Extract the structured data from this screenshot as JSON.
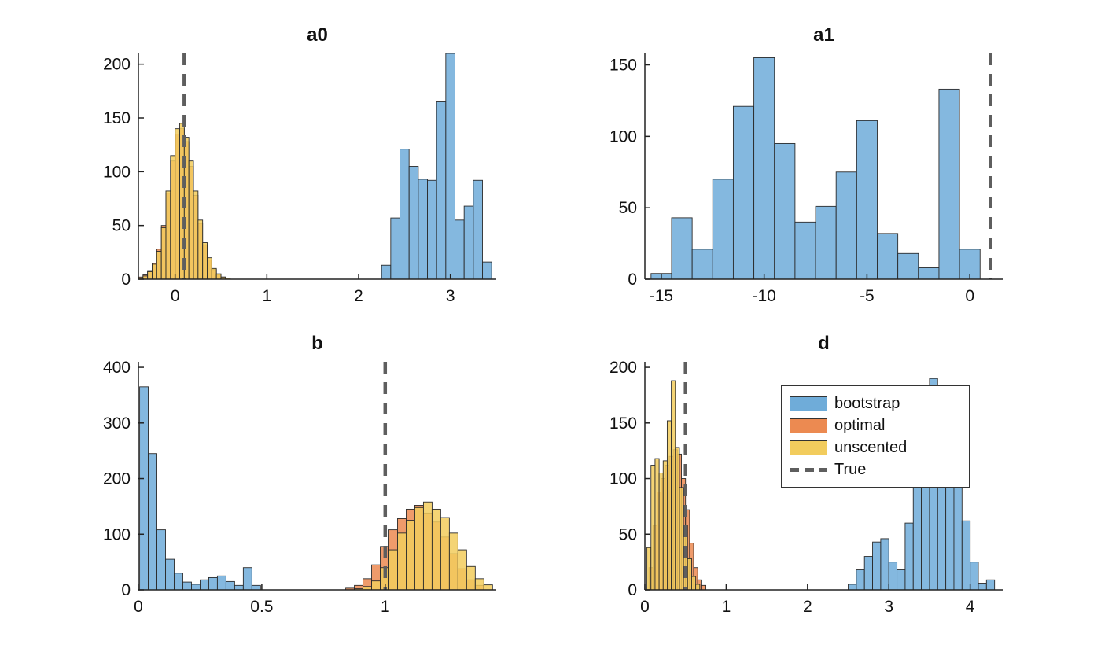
{
  "figure": {
    "background": "#FFFFFF",
    "axis_color": "#222222",
    "tick_label_color": "#111111"
  },
  "styles": {
    "true_line_color": "#5E5E5E",
    "bar_edge_color": "#2B2B2B",
    "bar_fill_opacity": 0.85
  },
  "legend": {
    "entries": [
      {
        "label": "bootstrap",
        "type": "patch",
        "color": "#6FACD9"
      },
      {
        "label": "optimal",
        "type": "patch",
        "color": "#EC8A51"
      },
      {
        "label": "unscented",
        "type": "patch",
        "color": "#F2CC5D"
      },
      {
        "label": "True",
        "type": "dashed-line",
        "color": "#5E5E5E"
      }
    ]
  },
  "chart_data": [
    {
      "type": "histogram",
      "title": "a0",
      "xlim": [
        -0.4,
        3.5
      ],
      "ylim": [
        0,
        210
      ],
      "xticks": [
        0,
        1,
        2,
        3
      ],
      "yticks": [
        0,
        50,
        100,
        150,
        200
      ],
      "true_line_x": 0.1,
      "position": [
        176,
        68,
        455,
        287
      ],
      "series": [
        {
          "name": "bootstrap",
          "color": "#6FACD9",
          "bin_start": 2.25,
          "bin_width": 0.1,
          "values": [
            13,
            57,
            121,
            105,
            93,
            92,
            165,
            212,
            55,
            68,
            92,
            16
          ]
        },
        {
          "name": "optimal",
          "color": "#EC8A51",
          "bin_start": -0.4,
          "bin_width": 0.05,
          "values": [
            2,
            4,
            8,
            15,
            28,
            50,
            80,
            110,
            135,
            140,
            128,
            105,
            78,
            52,
            32,
            18,
            9,
            4,
            2,
            1
          ]
        },
        {
          "name": "unscented",
          "color": "#F2CC5D",
          "bin_start": -0.4,
          "bin_width": 0.05,
          "values": [
            1,
            3,
            7,
            14,
            26,
            48,
            82,
            115,
            140,
            145,
            132,
            110,
            82,
            55,
            34,
            20,
            10,
            5,
            2,
            1
          ]
        }
      ]
    },
    {
      "type": "histogram",
      "title": "a1",
      "xlim": [
        -15.8,
        1.6
      ],
      "ylim": [
        0,
        158
      ],
      "xticks": [
        -15,
        -10,
        -5,
        0
      ],
      "yticks": [
        0,
        50,
        100,
        150
      ],
      "true_line_x": 1,
      "position": [
        820,
        68,
        455,
        287
      ],
      "series": [
        {
          "name": "bootstrap",
          "color": "#6FACD9",
          "bin_start": -15.5,
          "bin_width": 1,
          "values": [
            4,
            43,
            21,
            70,
            121,
            155,
            95,
            40,
            51,
            75,
            111,
            32,
            18,
            8,
            133,
            21
          ]
        }
      ]
    },
    {
      "type": "histogram",
      "title": "b",
      "xlim": [
        0,
        1.45
      ],
      "ylim": [
        0,
        410
      ],
      "xticks": [
        0,
        0.5,
        1
      ],
      "yticks": [
        0,
        100,
        200,
        300,
        400
      ],
      "true_line_x": 1,
      "position": [
        176,
        460,
        455,
        290
      ],
      "series": [
        {
          "name": "bootstrap",
          "color": "#6FACD9",
          "bin_start": 0.005,
          "bin_width": 0.035,
          "values": [
            365,
            245,
            108,
            55,
            30,
            14,
            10,
            18,
            22,
            25,
            15,
            8,
            40,
            8
          ]
        },
        {
          "name": "optimal",
          "color": "#EC8A51",
          "bin_start": 0.84,
          "bin_width": 0.035,
          "values": [
            3,
            8,
            20,
            45,
            78,
            108,
            128,
            145,
            152,
            138,
            122,
            95,
            65,
            38,
            18,
            8
          ]
        },
        {
          "name": "unscented",
          "color": "#F2CC5D",
          "bin_start": 0.875,
          "bin_width": 0.035,
          "values": [
            2,
            6,
            16,
            40,
            72,
            102,
            125,
            148,
            158,
            145,
            130,
            102,
            72,
            42,
            20,
            9
          ]
        }
      ]
    },
    {
      "type": "histogram",
      "title": "d",
      "xlim": [
        0,
        4.4
      ],
      "ylim": [
        0,
        205
      ],
      "xticks": [
        0,
        1,
        2,
        3,
        4
      ],
      "yticks": [
        0,
        50,
        100,
        150,
        200
      ],
      "true_line_x": 0.5,
      "position": [
        820,
        460,
        455,
        290
      ],
      "series": [
        {
          "name": "bootstrap",
          "color": "#6FACD9",
          "bin_start": 2.5,
          "bin_width": 0.1,
          "values": [
            5,
            18,
            30,
            43,
            46,
            25,
            18,
            60,
            92,
            112,
            190,
            112,
            102,
            92,
            62,
            25,
            6,
            9
          ]
        },
        {
          "name": "optimal",
          "color": "#EC8A51",
          "bin_start": 0.05,
          "bin_width": 0.05,
          "values": [
            20,
            58,
            88,
            100,
            112,
            120,
            126,
            122,
            100,
            72,
            42,
            20,
            9,
            4
          ]
        },
        {
          "name": "unscented",
          "color": "#F2CC5D",
          "bin_start": 0.025,
          "bin_width": 0.05,
          "values": [
            38,
            112,
            118,
            105,
            116,
            152,
            188,
            128,
            92,
            58,
            28,
            12,
            5
          ]
        }
      ]
    }
  ]
}
